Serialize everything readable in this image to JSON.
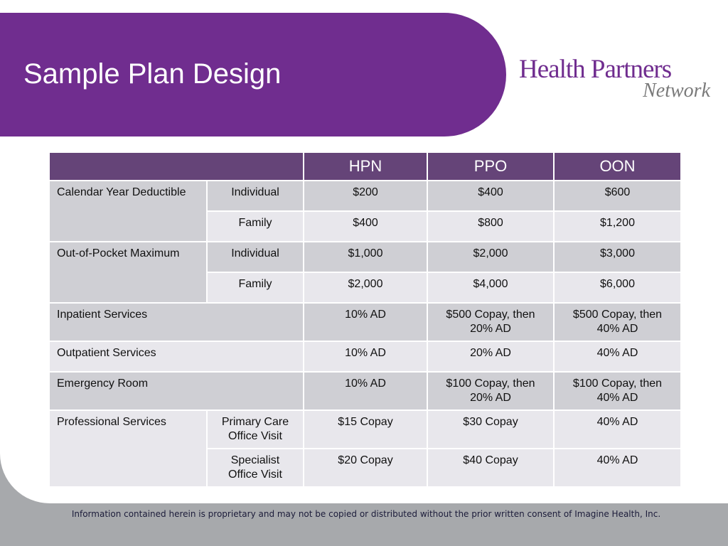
{
  "slide": {
    "title": "Sample Plan Design",
    "logo": {
      "main": "Health Partners",
      "sub": "Network"
    },
    "footer": "Information contained herein is proprietary and may not be copied or distributed without the prior written consent of Imagine Health, Inc."
  },
  "table": {
    "columns": [
      "",
      "HPN",
      "PPO",
      "OON"
    ],
    "rows": {
      "deductible": {
        "label": "Calendar Year Deductible",
        "individual": {
          "label": "Individual",
          "hpn": "$200",
          "ppo": "$400",
          "oon": "$600"
        },
        "family": {
          "label": "Family",
          "hpn": "$400",
          "ppo": "$800",
          "oon": "$1,200"
        }
      },
      "oop_max": {
        "label": "Out-of-Pocket Maximum",
        "individual": {
          "label": "Individual",
          "hpn": "$1,000",
          "ppo": "$2,000",
          "oon": "$3,000"
        },
        "family": {
          "label": "Family",
          "hpn": "$2,000",
          "ppo": "$4,000",
          "oon": "$6,000"
        }
      },
      "inpatient": {
        "label": "Inpatient Services",
        "hpn": "10% AD",
        "ppo": "$500 Copay, then 20% AD",
        "oon": "$500 Copay, then 40% AD"
      },
      "outpatient": {
        "label": "Outpatient Services",
        "hpn": "10% AD",
        "ppo": "20% AD",
        "oon": "40% AD"
      },
      "emergency": {
        "label": "Emergency Room",
        "hpn": "10% AD",
        "ppo": "$100 Copay, then 20% AD",
        "oon": "$100 Copay, then 40% AD"
      },
      "professional": {
        "label": "Professional Services",
        "primary": {
          "label": "Primary Care Office Visit",
          "hpn": "$15 Copay",
          "ppo": "$30 Copay",
          "oon": "40% AD"
        },
        "specialist": {
          "label": "Specialist Office Visit",
          "hpn": "$20 Copay",
          "ppo": "$40 Copay",
          "oon": "40% AD"
        }
      }
    }
  },
  "colors": {
    "banner": "#702d8f",
    "header": "#654478",
    "row_dark": "#cfcfd4",
    "row_light": "#e8e7ec",
    "background": "#a7a9ac"
  }
}
